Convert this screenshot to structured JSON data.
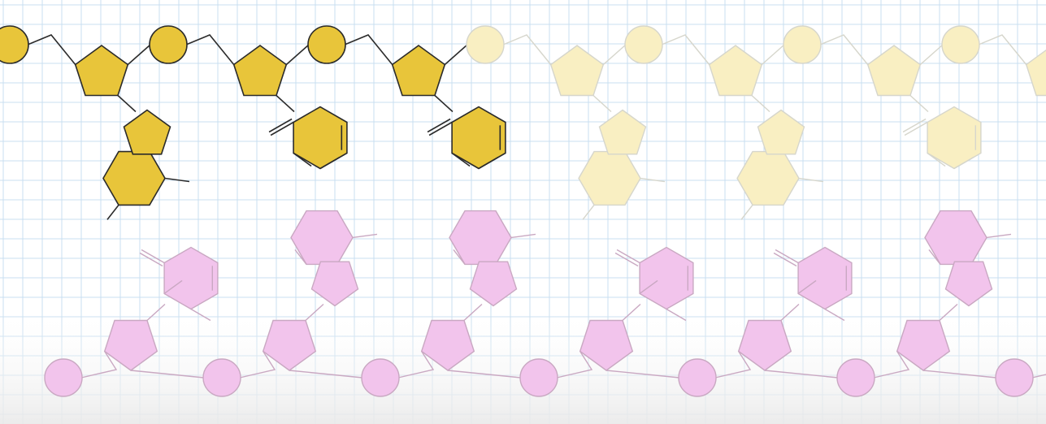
{
  "diagram": {
    "title": "",
    "colors": {
      "background": "#ffffff",
      "grid_line": "#c9dff0",
      "bottom_haze": "#eeeeee",
      "top_strand_fill": "#e8c53a",
      "top_strand_faded_fill": "#f9efc2",
      "top_strand_faded_stroke": "#d6d6cc",
      "bottom_strand_fill": "#e8a6dc",
      "bottom_strand_faded_fill": "#f2c4ec",
      "bottom_strand_stroke": "#c9a8c2",
      "ink": "#2b2b2b"
    },
    "top_strand": {
      "name": "upper-strand",
      "units": [
        {
          "base_type": "purine",
          "emphasis": "highlighted"
        },
        {
          "base_type": "pyrimidine",
          "emphasis": "highlighted"
        },
        {
          "base_type": "pyrimidine",
          "emphasis": "highlighted"
        },
        {
          "base_type": "purine",
          "emphasis": "faded"
        },
        {
          "base_type": "purine",
          "emphasis": "faded"
        },
        {
          "base_type": "pyrimidine",
          "emphasis": "faded"
        },
        {
          "base_type": "pyrimidine",
          "emphasis": "faded"
        }
      ]
    },
    "bottom_strand": {
      "name": "lower-strand",
      "units": [
        {
          "base_type": "pyrimidine",
          "emphasis": "faded"
        },
        {
          "base_type": "purine",
          "emphasis": "faded"
        },
        {
          "base_type": "purine",
          "emphasis": "faded"
        },
        {
          "base_type": "pyrimidine",
          "emphasis": "faded"
        },
        {
          "base_type": "pyrimidine",
          "emphasis": "faded"
        },
        {
          "base_type": "purine",
          "emphasis": "faded"
        },
        {
          "base_type": "purine",
          "emphasis": "faded"
        }
      ]
    }
  }
}
